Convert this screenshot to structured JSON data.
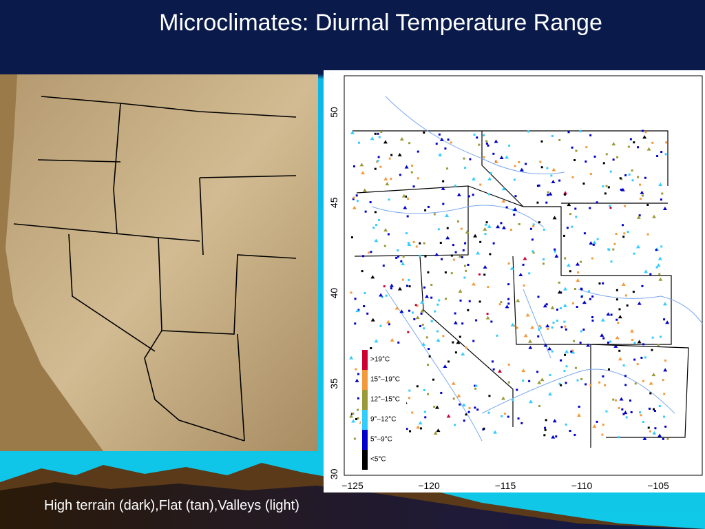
{
  "title": "Microclimates: Diurnal Temperature Range",
  "caption": "High terrain (dark),Flat (tan),Valleys (light)",
  "station_map": {
    "lat_labels": [
      "50",
      "45",
      "40",
      "35",
      "30"
    ],
    "lon_labels": [
      "−125",
      "−120",
      "−115",
      "−110",
      "−105"
    ],
    "legend": [
      {
        "label": ">19°C",
        "color": "#cc0033"
      },
      {
        "label": "15°–19°C",
        "color": "#f39a3c"
      },
      {
        "label": "12°–15°C",
        "color": "#9a9a3a"
      },
      {
        "label": "9°–12°C",
        "color": "#33ccff"
      },
      {
        "label": "5°–9°C",
        "color": "#0000cc"
      },
      {
        "label": "<5°C",
        "color": "#000000"
      }
    ]
  }
}
